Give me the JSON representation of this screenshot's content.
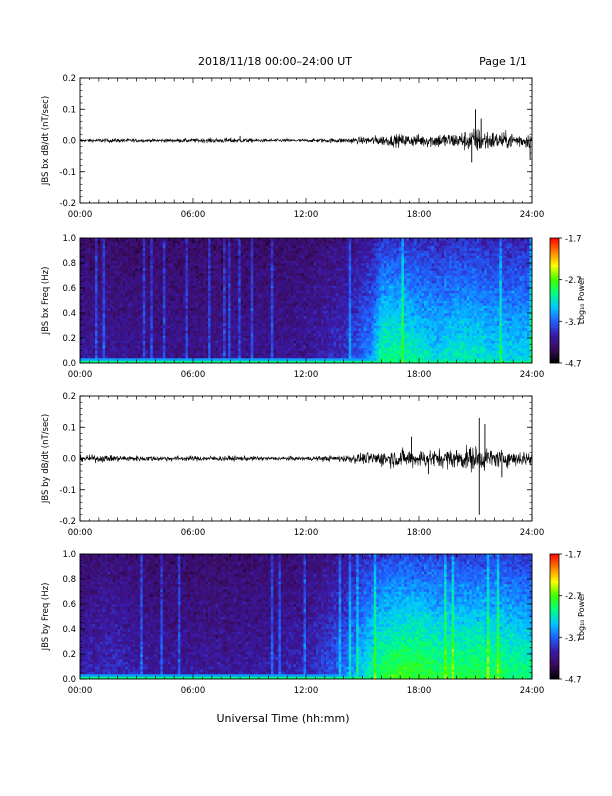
{
  "header": {
    "title": "2018/11/18   00:00–24:00 UT",
    "page_label": "Page 1/1"
  },
  "time_axis": {
    "label": "Universal Time (hh:mm)",
    "ticks": [
      "00:00",
      "06:00",
      "12:00",
      "18:00",
      "24:00"
    ],
    "range_hours": [
      0,
      24
    ]
  },
  "colormap": [
    "#000000",
    "#3a0a5a",
    "#3a1aa8",
    "#2060ff",
    "#00c8ff",
    "#00ff80",
    "#40ff00",
    "#ffff00",
    "#ff8000",
    "#ff0000"
  ],
  "chart_data": [
    {
      "type": "line",
      "ylabel": "JBS bx dB/dt (nT/sec)",
      "ylim": [
        -0.2,
        0.2
      ],
      "yticks": [
        "0.2",
        "0.1",
        "0.0",
        "-0.1",
        "-0.2"
      ],
      "ytick_values": [
        0.2,
        0.1,
        0.0,
        -0.1,
        -0.2
      ],
      "grid": false,
      "envelope": {
        "x": [
          0,
          2,
          4,
          6,
          8,
          10,
          12,
          13,
          14,
          15,
          15.5,
          16,
          17,
          18,
          19,
          20,
          20.5,
          21,
          21.5,
          22,
          23,
          24
        ],
        "amplitude": [
          0.006,
          0.008,
          0.006,
          0.008,
          0.01,
          0.006,
          0.006,
          0.008,
          0.01,
          0.014,
          0.018,
          0.02,
          0.024,
          0.024,
          0.03,
          0.03,
          0.04,
          0.05,
          0.045,
          0.035,
          0.03,
          0.03
        ]
      },
      "spikes": [
        {
          "x": 8.5,
          "y": 0.015
        },
        {
          "x": 21.0,
          "y": 0.1
        },
        {
          "x": 21.3,
          "y": 0.07
        },
        {
          "x": 20.8,
          "y": -0.07
        },
        {
          "x": 23.9,
          "y": -0.06
        }
      ]
    },
    {
      "type": "heatmap",
      "ylabel": "JBS bx Freq (Hz)",
      "ylim": [
        0.0,
        1.0
      ],
      "yticks": [
        "1.0",
        "0.8",
        "0.6",
        "0.4",
        "0.2",
        "0.0"
      ],
      "ytick_values": [
        1.0,
        0.8,
        0.6,
        0.4,
        0.2,
        0.0
      ],
      "colorbar": {
        "label": "Log₁₀ Power",
        "range": [
          -4.7,
          -1.7
        ],
        "ticks": [
          "-1.7",
          "-2.7",
          "-3.7",
          "-4.7"
        ],
        "tick_values": [
          -1.7,
          -2.7,
          -3.7,
          -4.7
        ]
      },
      "activity": {
        "x": [
          0,
          4,
          8,
          12,
          14,
          15.5,
          16,
          17,
          18,
          19,
          20,
          21,
          22,
          24
        ],
        "level": [
          0.12,
          0.1,
          0.1,
          0.12,
          0.2,
          0.35,
          0.55,
          0.55,
          0.5,
          0.45,
          0.5,
          0.5,
          0.45,
          0.45
        ]
      }
    },
    {
      "type": "line",
      "ylabel": "JBS by dB/dt (nT/sec)",
      "ylim": [
        -0.2,
        0.2
      ],
      "yticks": [
        "0.2",
        "0.1",
        "0.0",
        "-0.1",
        "-0.2"
      ],
      "ytick_values": [
        0.2,
        0.1,
        0.0,
        -0.1,
        -0.2
      ],
      "grid": false,
      "envelope": {
        "x": [
          0,
          1,
          2,
          4,
          6,
          8,
          10,
          12,
          13,
          14,
          15,
          16,
          17,
          18,
          19,
          20,
          20.5,
          21,
          21.5,
          22,
          23,
          24
        ],
        "amplitude": [
          0.012,
          0.014,
          0.012,
          0.01,
          0.01,
          0.01,
          0.008,
          0.008,
          0.01,
          0.014,
          0.02,
          0.03,
          0.035,
          0.035,
          0.035,
          0.04,
          0.045,
          0.05,
          0.045,
          0.035,
          0.03,
          0.03
        ]
      },
      "spikes": [
        {
          "x": 17.6,
          "y": 0.07
        },
        {
          "x": 21.2,
          "y": 0.13
        },
        {
          "x": 21.5,
          "y": 0.11
        },
        {
          "x": 21.2,
          "y": -0.18
        },
        {
          "x": 22.4,
          "y": -0.06
        },
        {
          "x": 18.5,
          "y": -0.05
        }
      ]
    },
    {
      "type": "heatmap",
      "ylabel": "JBS by Freq (Hz)",
      "ylim": [
        0.0,
        1.0
      ],
      "yticks": [
        "1.0",
        "0.8",
        "0.6",
        "0.4",
        "0.2",
        "0.0"
      ],
      "ytick_values": [
        1.0,
        0.8,
        0.6,
        0.4,
        0.2,
        0.0
      ],
      "colorbar": {
        "label": "Log₁₀ Power",
        "range": [
          -4.7,
          -1.7
        ],
        "ticks": [
          "-1.7",
          "-2.7",
          "-3.7",
          "-4.7"
        ],
        "tick_values": [
          -1.7,
          -2.7,
          -3.7,
          -4.7
        ]
      },
      "activity": {
        "x": [
          0,
          2,
          4,
          6,
          8,
          10,
          12,
          14,
          15,
          16,
          17,
          18,
          19,
          20,
          21,
          22,
          24
        ],
        "level": [
          0.15,
          0.18,
          0.12,
          0.12,
          0.12,
          0.14,
          0.16,
          0.3,
          0.45,
          0.6,
          0.65,
          0.65,
          0.6,
          0.6,
          0.62,
          0.6,
          0.55
        ]
      }
    }
  ]
}
